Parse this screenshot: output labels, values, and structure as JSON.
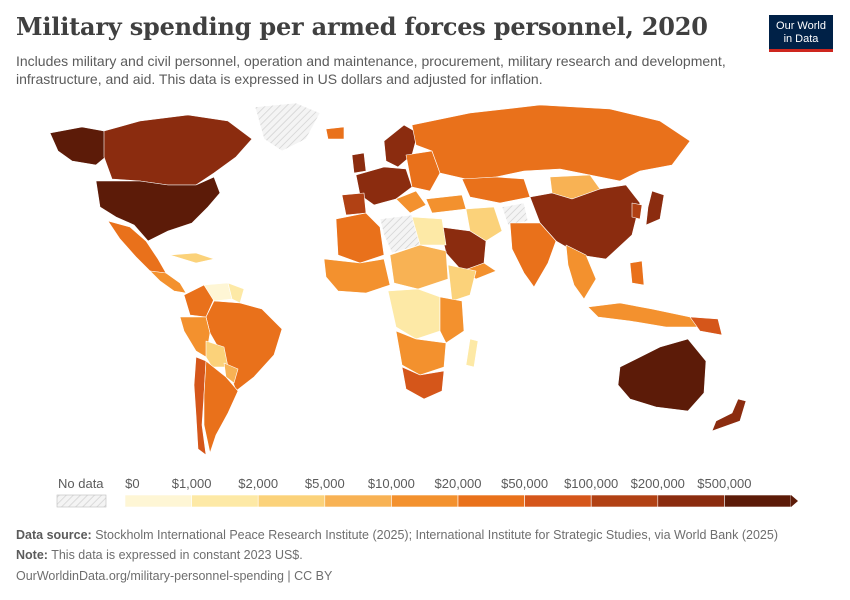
{
  "header": {
    "title": "Military spending per armed forces personnel, 2020",
    "subtitle": "Includes military and civil personnel, operation and maintenance, procurement, military research and development, infrastructure, and aid. This data is expressed in US dollars and adjusted for inflation."
  },
  "logo": {
    "line1": "Our World",
    "line2": "in Data"
  },
  "legend": {
    "no_data_label": "No data",
    "bins": [
      {
        "label": "$0",
        "color": "#fef6d5"
      },
      {
        "label": "$1,000",
        "color": "#fde9a6"
      },
      {
        "label": "$2,000",
        "color": "#fbd27a"
      },
      {
        "label": "$5,000",
        "color": "#f8b254"
      },
      {
        "label": "$10,000",
        "color": "#f3912e"
      },
      {
        "label": "$20,000",
        "color": "#e9711b"
      },
      {
        "label": "$50,000",
        "color": "#d5561a"
      },
      {
        "label": "$100,000",
        "color": "#b14114"
      },
      {
        "label": "$200,000",
        "color": "#8b2c0f"
      },
      {
        "label": "$500,000",
        "color": "#5c1b08"
      }
    ]
  },
  "footer": {
    "source_label": "Data source:",
    "source_text": "Stockholm International Peace Research Institute (2025); International Institute for Strategic Studies, via World Bank (2025)",
    "note_label": "Note:",
    "note_text": "This data is expressed in constant 2023 US$.",
    "url": "OurWorldinData.org/military-personnel-spending | CC BY"
  },
  "colors": {
    "no_data": "#ececec",
    "bin_0": "#fef6d5",
    "bin_1": "#fde9a6",
    "bin_2": "#fbd27a",
    "bin_3": "#f8b254",
    "bin_4": "#f3912e",
    "bin_5": "#e9711b",
    "bin_6": "#d5561a",
    "bin_7": "#b14114",
    "bin_8": "#8b2c0f",
    "bin_9": "#5c1b08"
  }
}
